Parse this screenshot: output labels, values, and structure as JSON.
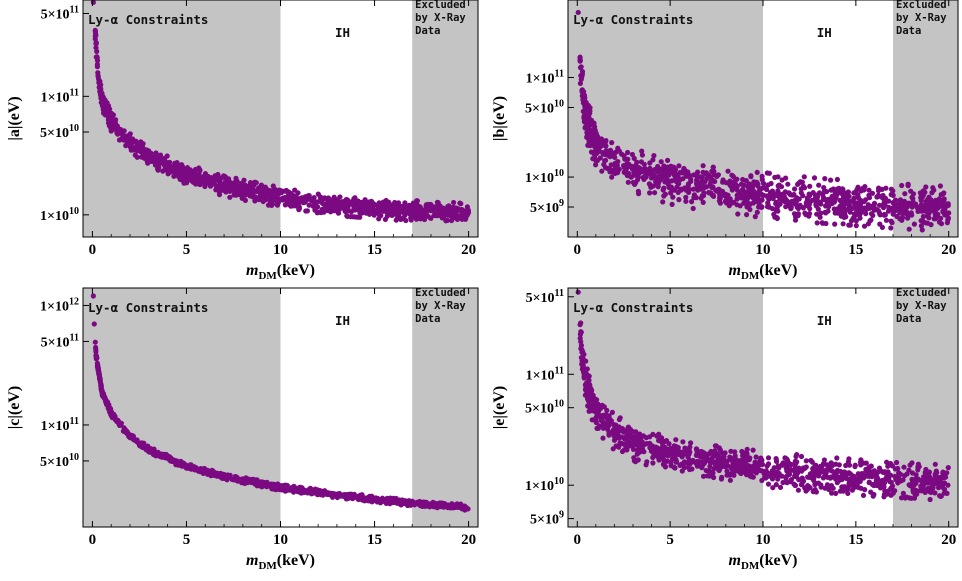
{
  "chart_data": [
    {
      "type": "scatter",
      "panel": "a",
      "ylabel": "|a|(eV)",
      "xlabel": "m_DM(keV)",
      "xlabel_parts": {
        "base": "m",
        "sub": "DM",
        "unit": "(keV)"
      },
      "log_y": true,
      "xlim": [
        -0.5,
        20.5
      ],
      "ylim": [
        6500000000,
        650000000000
      ],
      "x_ticks": [
        0,
        5,
        10,
        15,
        20
      ],
      "x_tick_labels": [
        "0",
        "5",
        "10",
        "15",
        "20"
      ],
      "y_ticks": [
        10000000000,
        50000000000,
        100000000000,
        500000000000
      ],
      "y_tick_labels": [
        {
          "m": "1",
          "e": "10"
        },
        {
          "m": "5",
          "e": "10"
        },
        {
          "m": "1",
          "e": "11"
        },
        {
          "m": "5",
          "e": "11"
        }
      ],
      "shaded_regions": [
        {
          "from": -0.5,
          "to": 10
        },
        {
          "from": 17,
          "to": 20.5
        }
      ],
      "annotations": {
        "left": "Ly-α Constraints",
        "mid": "IH",
        "right": [
          "Excluded",
          "by X-Ray",
          "Data"
        ]
      },
      "marker_color": "#7b0a82",
      "curve_points": [
        [
          0.05,
          620000000000
        ],
        [
          0.15,
          360000000000
        ],
        [
          0.3,
          150000000000
        ],
        [
          0.5,
          95000000000
        ],
        [
          1,
          62000000000
        ],
        [
          2,
          40000000000
        ],
        [
          3,
          30000000000
        ],
        [
          5,
          22000000000
        ],
        [
          7,
          17500000000
        ],
        [
          10,
          14000000000
        ],
        [
          13,
          12000000000
        ],
        [
          16,
          11000000000
        ],
        [
          18,
          10700000000
        ],
        [
          20,
          10300000000
        ]
      ],
      "scatter_spread": 0.17
    },
    {
      "type": "scatter",
      "panel": "b",
      "ylabel": "|b|(eV)",
      "xlabel": "m_DM(keV)",
      "xlabel_parts": {
        "base": "m",
        "sub": "DM",
        "unit": "(keV)"
      },
      "log_y": true,
      "xlim": [
        -0.5,
        20.5
      ],
      "ylim": [
        2500000000,
        600000000000
      ],
      "x_ticks": [
        0,
        5,
        10,
        15,
        20
      ],
      "x_tick_labels": [
        "0",
        "5",
        "10",
        "15",
        "20"
      ],
      "y_ticks": [
        5000000000,
        10000000000,
        50000000000,
        100000000000
      ],
      "y_tick_labels": [
        {
          "m": "5",
          "e": "9"
        },
        {
          "m": "1",
          "e": "10"
        },
        {
          "m": "5",
          "e": "10"
        },
        {
          "m": "1",
          "e": "11"
        }
      ],
      "shaded_regions": [
        {
          "from": -0.5,
          "to": 10
        },
        {
          "from": 17,
          "to": 20.5
        }
      ],
      "annotations": {
        "left": "Ly-α Constraints",
        "mid": "IH",
        "right": [
          "Excluded",
          "by X-Ray",
          "Data"
        ]
      },
      "marker_color": "#7b0a82",
      "curve_points": [
        [
          0.05,
          450000000000
        ],
        [
          0.15,
          160000000000
        ],
        [
          0.3,
          60000000000
        ],
        [
          0.6,
          32000000000
        ],
        [
          1,
          22000000000
        ],
        [
          2,
          14500000000
        ],
        [
          3,
          11500000000
        ],
        [
          5,
          9000000000
        ],
        [
          7,
          7600000000
        ],
        [
          10,
          6600000000
        ],
        [
          13,
          5800000000
        ],
        [
          16,
          5300000000
        ],
        [
          18,
          5000000000
        ],
        [
          20,
          4800000000
        ]
      ],
      "scatter_spread": 0.45
    },
    {
      "type": "scatter",
      "panel": "c",
      "ylabel": "|c|(eV)",
      "xlabel": "m_DM(keV)",
      "xlabel_parts": {
        "base": "m",
        "sub": "DM",
        "unit": "(keV)"
      },
      "log_y": true,
      "xlim": [
        -0.5,
        20.5
      ],
      "ylim": [
        14000000000,
        1400000000000
      ],
      "x_ticks": [
        0,
        5,
        10,
        15,
        20
      ],
      "x_tick_labels": [
        "0",
        "5",
        "10",
        "15",
        "20"
      ],
      "y_ticks": [
        50000000000,
        100000000000,
        500000000000,
        1000000000000
      ],
      "y_tick_labels": [
        {
          "m": "5",
          "e": "10"
        },
        {
          "m": "1",
          "e": "11"
        },
        {
          "m": "5",
          "e": "11"
        },
        {
          "m": "1",
          "e": "12"
        }
      ],
      "shaded_regions": [
        {
          "from": -0.5,
          "to": 10
        },
        {
          "from": 17,
          "to": 20.5
        }
      ],
      "annotations": {
        "left": "Ly-α Constraints",
        "mid": "IH",
        "right": [
          "Excluded",
          "by X-Ray",
          "Data"
        ]
      },
      "marker_color": "#7b0a82",
      "curve_points": [
        [
          0.05,
          1200000000000
        ],
        [
          0.1,
          700000000000
        ],
        [
          0.2,
          380000000000
        ],
        [
          0.5,
          190000000000
        ],
        [
          1,
          125000000000
        ],
        [
          2,
          80000000000
        ],
        [
          3,
          62000000000
        ],
        [
          5,
          45000000000
        ],
        [
          7,
          37000000000
        ],
        [
          10,
          30000000000
        ],
        [
          13,
          26000000000
        ],
        [
          16,
          23000000000
        ],
        [
          18,
          21500000000
        ],
        [
          20,
          20500000000
        ]
      ],
      "scatter_spread": 0.05
    },
    {
      "type": "scatter",
      "panel": "e",
      "ylabel": "|e|(eV)",
      "xlabel": "m_DM(keV)",
      "xlabel_parts": {
        "base": "m",
        "sub": "DM",
        "unit": "(keV)"
      },
      "log_y": true,
      "xlim": [
        -0.5,
        20.5
      ],
      "ylim": [
        4200000000,
        600000000000
      ],
      "x_ticks": [
        0,
        5,
        10,
        15,
        20
      ],
      "x_tick_labels": [
        "0",
        "5",
        "10",
        "15",
        "20"
      ],
      "y_ticks": [
        5000000000,
        10000000000,
        50000000000,
        100000000000,
        500000000000
      ],
      "y_tick_labels": [
        {
          "m": "5",
          "e": "9"
        },
        {
          "m": "1",
          "e": "10"
        },
        {
          "m": "5",
          "e": "10"
        },
        {
          "m": "1",
          "e": "11"
        },
        {
          "m": "5",
          "e": "11"
        }
      ],
      "shaded_regions": [
        {
          "from": -0.5,
          "to": 10
        },
        {
          "from": 17,
          "to": 20.5
        }
      ],
      "annotations": {
        "left": "Ly-α Constraints",
        "mid": "IH",
        "right": [
          "Excluded",
          "by X-Ray",
          "Data"
        ]
      },
      "marker_color": "#7b0a82",
      "curve_points": [
        [
          0.05,
          550000000000
        ],
        [
          0.15,
          280000000000
        ],
        [
          0.3,
          120000000000
        ],
        [
          0.6,
          70000000000
        ],
        [
          1,
          45000000000
        ],
        [
          2,
          30000000000
        ],
        [
          3,
          24000000000
        ],
        [
          5,
          19000000000
        ],
        [
          7,
          16000000000
        ],
        [
          10,
          14000000000
        ],
        [
          13,
          12500000000
        ],
        [
          16,
          11500000000
        ],
        [
          18,
          11000000000
        ],
        [
          20,
          10500000000
        ]
      ],
      "scatter_spread": 0.32
    }
  ]
}
